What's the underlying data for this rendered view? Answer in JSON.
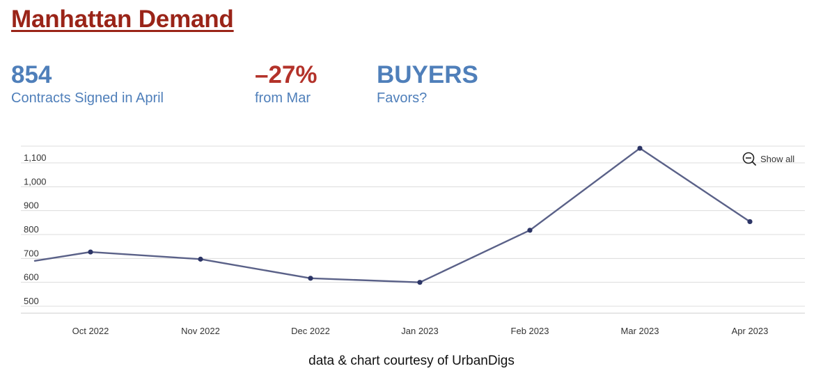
{
  "header": {
    "title": "Manhattan Demand"
  },
  "stats": [
    {
      "value": "854",
      "label": "Contracts Signed  in April",
      "negative": false
    },
    {
      "value": "–27%",
      "label": "from Mar",
      "negative": true
    },
    {
      "value": "BUYERS",
      "label": "Favors?",
      "negative": false
    }
  ],
  "controls": {
    "show_all_label": "Show all",
    "show_all_icon": "zoom-out-icon"
  },
  "colors": {
    "title": "#9a2418",
    "stat_blue": "#4f7fba",
    "stat_red": "#b3322a",
    "line": "#5a6188",
    "point": "#2c3566",
    "grid": "#dcdcdc"
  },
  "chart_data": {
    "type": "line",
    "title": "",
    "xlabel": "",
    "ylabel": "",
    "categories": [
      "Oct 2022",
      "Nov 2022",
      "Dec 2022",
      "Jan 2023",
      "Feb 2023",
      "Mar 2023",
      "Apr 2023"
    ],
    "y_ticks": [
      500,
      600,
      700,
      800,
      900,
      1000,
      1100
    ],
    "y_tick_labels": [
      "500",
      "600",
      "700",
      "800",
      "900",
      "1,000",
      "1,100"
    ],
    "ylim": [
      450,
      1200
    ],
    "grid": true,
    "legend": "none",
    "series": [
      {
        "x": [
          "Oct 2022",
          "Nov 2022",
          "Dec 2022",
          "Jan 2023",
          "Feb 2023",
          "Mar 2023",
          "Apr 2023"
        ],
        "values": [
          727,
          697,
          617,
          600,
          818,
          1161,
          854
        ]
      }
    ],
    "leading_segment": {
      "x_before_first": "Sep 2022",
      "value": 690
    }
  },
  "footer": {
    "credit": "data & chart courtesy of UrbanDigs"
  }
}
